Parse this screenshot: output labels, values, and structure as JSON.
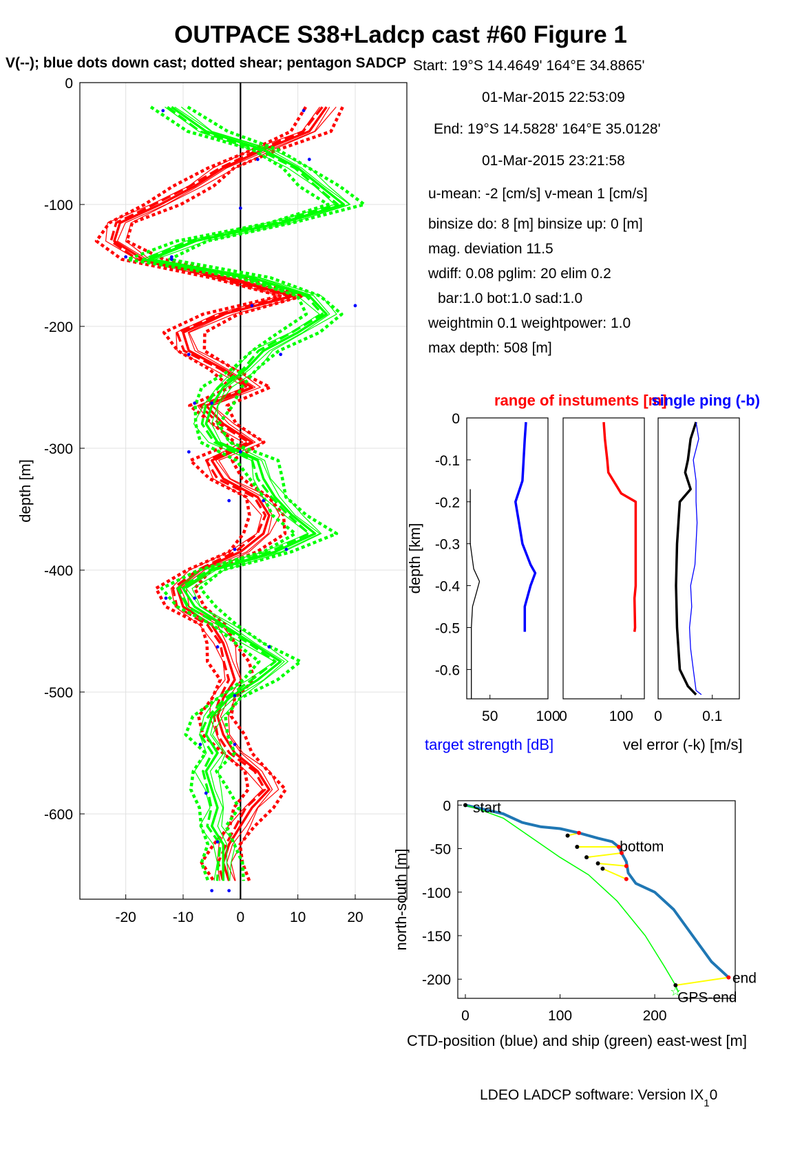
{
  "title": "OUTPACE S38+Ladcp cast #60  Figure 1",
  "subtitle": "V(--); blue dots down cast; dotted shear; pentagon SADCP",
  "info": {
    "start": "Start:   19°S 14.4649'     164°E 34.8865'",
    "start_time": "01-Mar-2015 22:53:09",
    "end": "End:   19°S 14.5828'     164°E 35.0128'",
    "end_time": "01-Mar-2015 23:21:58",
    "means": "u-mean:  -2 [cm/s]    v-mean   1 [cm/s]",
    "binsize": "binsize do: 8 [m]  binsize up:  0 [m]",
    "magdev": "mag. deviation 11.5",
    "wdiff": "wdiff: 0.08  pglim: 20  elim 0.2",
    "bar": "bar:1.0 bot:1.0 sad:1.0",
    "weight": "weightmin 0.1  weightpower: 1.0",
    "maxdepth": "max depth: 508 [m]"
  },
  "footer": "LDEO LADCP software: Version IX",
  "footer_sub": "1",
  "footer_tail": "0",
  "colors": {
    "red": "#ff0000",
    "green": "#00ff00",
    "blue": "#0000ff",
    "ctd": "#1f77b4",
    "yellow": "#ffff00",
    "grid": "#e0e0e0"
  },
  "chart_data": [
    {
      "type": "line",
      "name": "velocity profile",
      "ylabel": "depth [m]",
      "xlabel": "",
      "xlim": [
        -28,
        29
      ],
      "ylim": [
        -670,
        0
      ],
      "xticks": [
        -20,
        -10,
        0,
        10,
        20
      ],
      "yticks": [
        0,
        -100,
        -200,
        -300,
        -400,
        -500,
        -600
      ],
      "grid": true,
      "depth": [
        -20,
        -40,
        -55,
        -70,
        -85,
        -100,
        -115,
        -130,
        -145,
        -160,
        -175,
        -190,
        -205,
        -220,
        -235,
        -250,
        -265,
        -280,
        -295,
        -310,
        -325,
        -340,
        -355,
        -370,
        -385,
        -400,
        -415,
        -430,
        -445,
        -460,
        -475,
        -490,
        -505,
        -520,
        -535,
        -550,
        -565,
        -580,
        -595,
        -610,
        -625,
        -640,
        -655
      ],
      "series": [
        {
          "name": "U",
          "color": "red",
          "values": [
            15,
            12,
            4,
            -3,
            -8,
            -14,
            -21,
            -22,
            -17,
            -3,
            9,
            -3,
            -10,
            -9,
            -3,
            2,
            -6,
            -3,
            2,
            -5,
            -3,
            3,
            5,
            4,
            0,
            -7,
            -11,
            -10,
            -5,
            -3,
            -2,
            -1,
            -3,
            -4,
            -3,
            -1,
            3,
            5,
            2,
            0,
            -2,
            -3,
            -2
          ]
        },
        {
          "name": "V",
          "color": "green",
          "values": [
            -12,
            -6,
            4,
            10,
            14,
            18,
            7,
            -8,
            -16,
            2,
            12,
            15,
            10,
            4,
            1,
            -3,
            -5,
            -6,
            -4,
            3,
            4,
            6,
            9,
            13,
            6,
            -5,
            -10,
            -8,
            -3,
            2,
            7,
            3,
            -2,
            -5,
            -6,
            -4,
            -6,
            -5,
            -4,
            -5,
            -3,
            -3,
            -3
          ]
        }
      ],
      "downcast_dots": [
        [
          -13.5,
          -23
        ],
        [
          11,
          -23
        ],
        [
          3,
          -63
        ],
        [
          12,
          -63
        ],
        [
          0,
          -103
        ],
        [
          -20,
          -143
        ],
        [
          -12,
          -143
        ],
        [
          -12,
          -145
        ],
        [
          2,
          -183
        ],
        [
          20,
          -183
        ],
        [
          -9,
          -223
        ],
        [
          7,
          -223
        ],
        [
          -8,
          -263
        ],
        [
          -5,
          -263
        ],
        [
          -9,
          -303
        ],
        [
          0,
          -303
        ],
        [
          -2,
          -343
        ],
        [
          4,
          -343
        ],
        [
          -1,
          -383
        ],
        [
          8,
          -383
        ],
        [
          -13,
          -423
        ],
        [
          -8,
          -423
        ],
        [
          -4,
          -463
        ],
        [
          5,
          -463
        ],
        [
          -1,
          -503
        ],
        [
          -7,
          -543
        ],
        [
          -1,
          -543
        ],
        [
          -6,
          -583
        ],
        [
          -4,
          -623
        ],
        [
          -5,
          -663
        ],
        [
          -2,
          -663
        ]
      ]
    },
    {
      "type": "line",
      "name": "target strength",
      "title": "",
      "xlabel": "target strength [dB]",
      "ylabel": "depth [km]",
      "xlim": [
        30,
        100
      ],
      "ylim": [
        -0.67,
        0
      ],
      "xticks": [
        50,
        100
      ],
      "yticks": [
        0,
        -0.1,
        -0.2,
        -0.3,
        -0.4,
        -0.5,
        -0.6
      ],
      "series": [
        {
          "name": "target strength",
          "color": "blue",
          "y": [
            -0.01,
            -0.05,
            -0.1,
            -0.15,
            -0.2,
            -0.25,
            -0.3,
            -0.35,
            -0.37,
            -0.4,
            -0.45,
            -0.5,
            -0.51
          ],
          "x": [
            81,
            80,
            79,
            78,
            72,
            75,
            78,
            85,
            89,
            85,
            80,
            80,
            80
          ]
        },
        {
          "name": "noise",
          "color": "black",
          "y": [
            -0.17,
            -0.3,
            -0.36,
            -0.39,
            -0.42,
            -0.45,
            -0.5,
            -0.6,
            -0.67
          ],
          "x": [
            33,
            33,
            36,
            41,
            38,
            35,
            34,
            34,
            34
          ]
        }
      ]
    },
    {
      "type": "line",
      "name": "range of instruments",
      "title": "range of instuments [m]",
      "xlabel": "",
      "xlim": [
        0,
        140
      ],
      "ylim": [
        -0.67,
        0
      ],
      "xticks": [
        0,
        100
      ],
      "series": [
        {
          "name": "range",
          "color": "red",
          "y": [
            -0.01,
            -0.05,
            -0.1,
            -0.13,
            -0.18,
            -0.2,
            -0.3,
            -0.4,
            -0.43,
            -0.5,
            -0.51
          ],
          "x": [
            70,
            72,
            76,
            78,
            100,
            125,
            125,
            125,
            123,
            124,
            123
          ]
        }
      ]
    },
    {
      "type": "line",
      "name": "velocity error",
      "title": "single ping (-b)",
      "xlabel": "vel error (-k) [m/s]",
      "xlim": [
        0,
        0.15
      ],
      "ylim": [
        -0.67,
        0
      ],
      "xticks": [
        0,
        0.1
      ],
      "series": [
        {
          "name": "vel error",
          "color": "black",
          "y": [
            -0.01,
            -0.05,
            -0.1,
            -0.13,
            -0.17,
            -0.2,
            -0.3,
            -0.4,
            -0.5,
            -0.6,
            -0.64,
            -0.66
          ],
          "x": [
            0.07,
            0.06,
            0.055,
            0.05,
            0.06,
            0.04,
            0.035,
            0.033,
            0.035,
            0.04,
            0.055,
            0.07
          ]
        },
        {
          "name": "single ping",
          "color": "blue",
          "y": [
            -0.01,
            -0.05,
            -0.1,
            -0.15,
            -0.2,
            -0.25,
            -0.3,
            -0.35,
            -0.4,
            -0.45,
            -0.5,
            -0.55,
            -0.6,
            -0.65,
            -0.66
          ],
          "x": [
            0.07,
            0.075,
            0.065,
            0.07,
            0.07,
            0.072,
            0.07,
            0.068,
            0.06,
            0.062,
            0.058,
            0.06,
            0.065,
            0.07,
            0.08
          ]
        }
      ]
    },
    {
      "type": "line",
      "name": "position",
      "xlabel": "CTD-position (blue) and ship (green) east-west [m]",
      "ylabel": "north-south [m]",
      "xlim": [
        -8,
        285
      ],
      "ylim": [
        -222,
        5
      ],
      "xticks": [
        0,
        100,
        200
      ],
      "yticks": [
        0,
        -50,
        -100,
        -150,
        -200
      ],
      "labels": [
        {
          "text": "start",
          "x": 8,
          "y": -2
        },
        {
          "text": "bottom",
          "x": 163,
          "y": -47
        },
        {
          "text": "end",
          "x": 282,
          "y": -198
        },
        {
          "text": "GPS-end",
          "x": 224,
          "y": -220
        }
      ],
      "series": [
        {
          "name": "CTD",
          "color": "ctd",
          "x": [
            0,
            20,
            40,
            60,
            80,
            100,
            120,
            140,
            155,
            162,
            165,
            170,
            172,
            180,
            200,
            220,
            240,
            260,
            278
          ],
          "y": [
            0,
            -5,
            -10,
            -20,
            -25,
            -27,
            -32,
            -38,
            -42,
            -48,
            -55,
            -65,
            -78,
            -90,
            -100,
            -120,
            -150,
            -180,
            -198
          ]
        },
        {
          "name": "ship",
          "color": "green",
          "x": [
            0,
            20,
            40,
            60,
            80,
            100,
            130,
            160,
            190,
            210,
            222,
            225
          ],
          "y": [
            0,
            -7,
            -15,
            -30,
            -45,
            -60,
            -80,
            -110,
            -150,
            -185,
            -207,
            -215
          ]
        }
      ],
      "connectors": [
        [
          120,
          -32,
          108,
          -35
        ],
        [
          162,
          -48,
          118,
          -48
        ],
        [
          165,
          -55,
          128,
          -60
        ],
        [
          170,
          -70,
          140,
          -67
        ],
        [
          170,
          -85,
          145,
          -73
        ],
        [
          278,
          -198,
          222,
          -207
        ]
      ]
    }
  ]
}
